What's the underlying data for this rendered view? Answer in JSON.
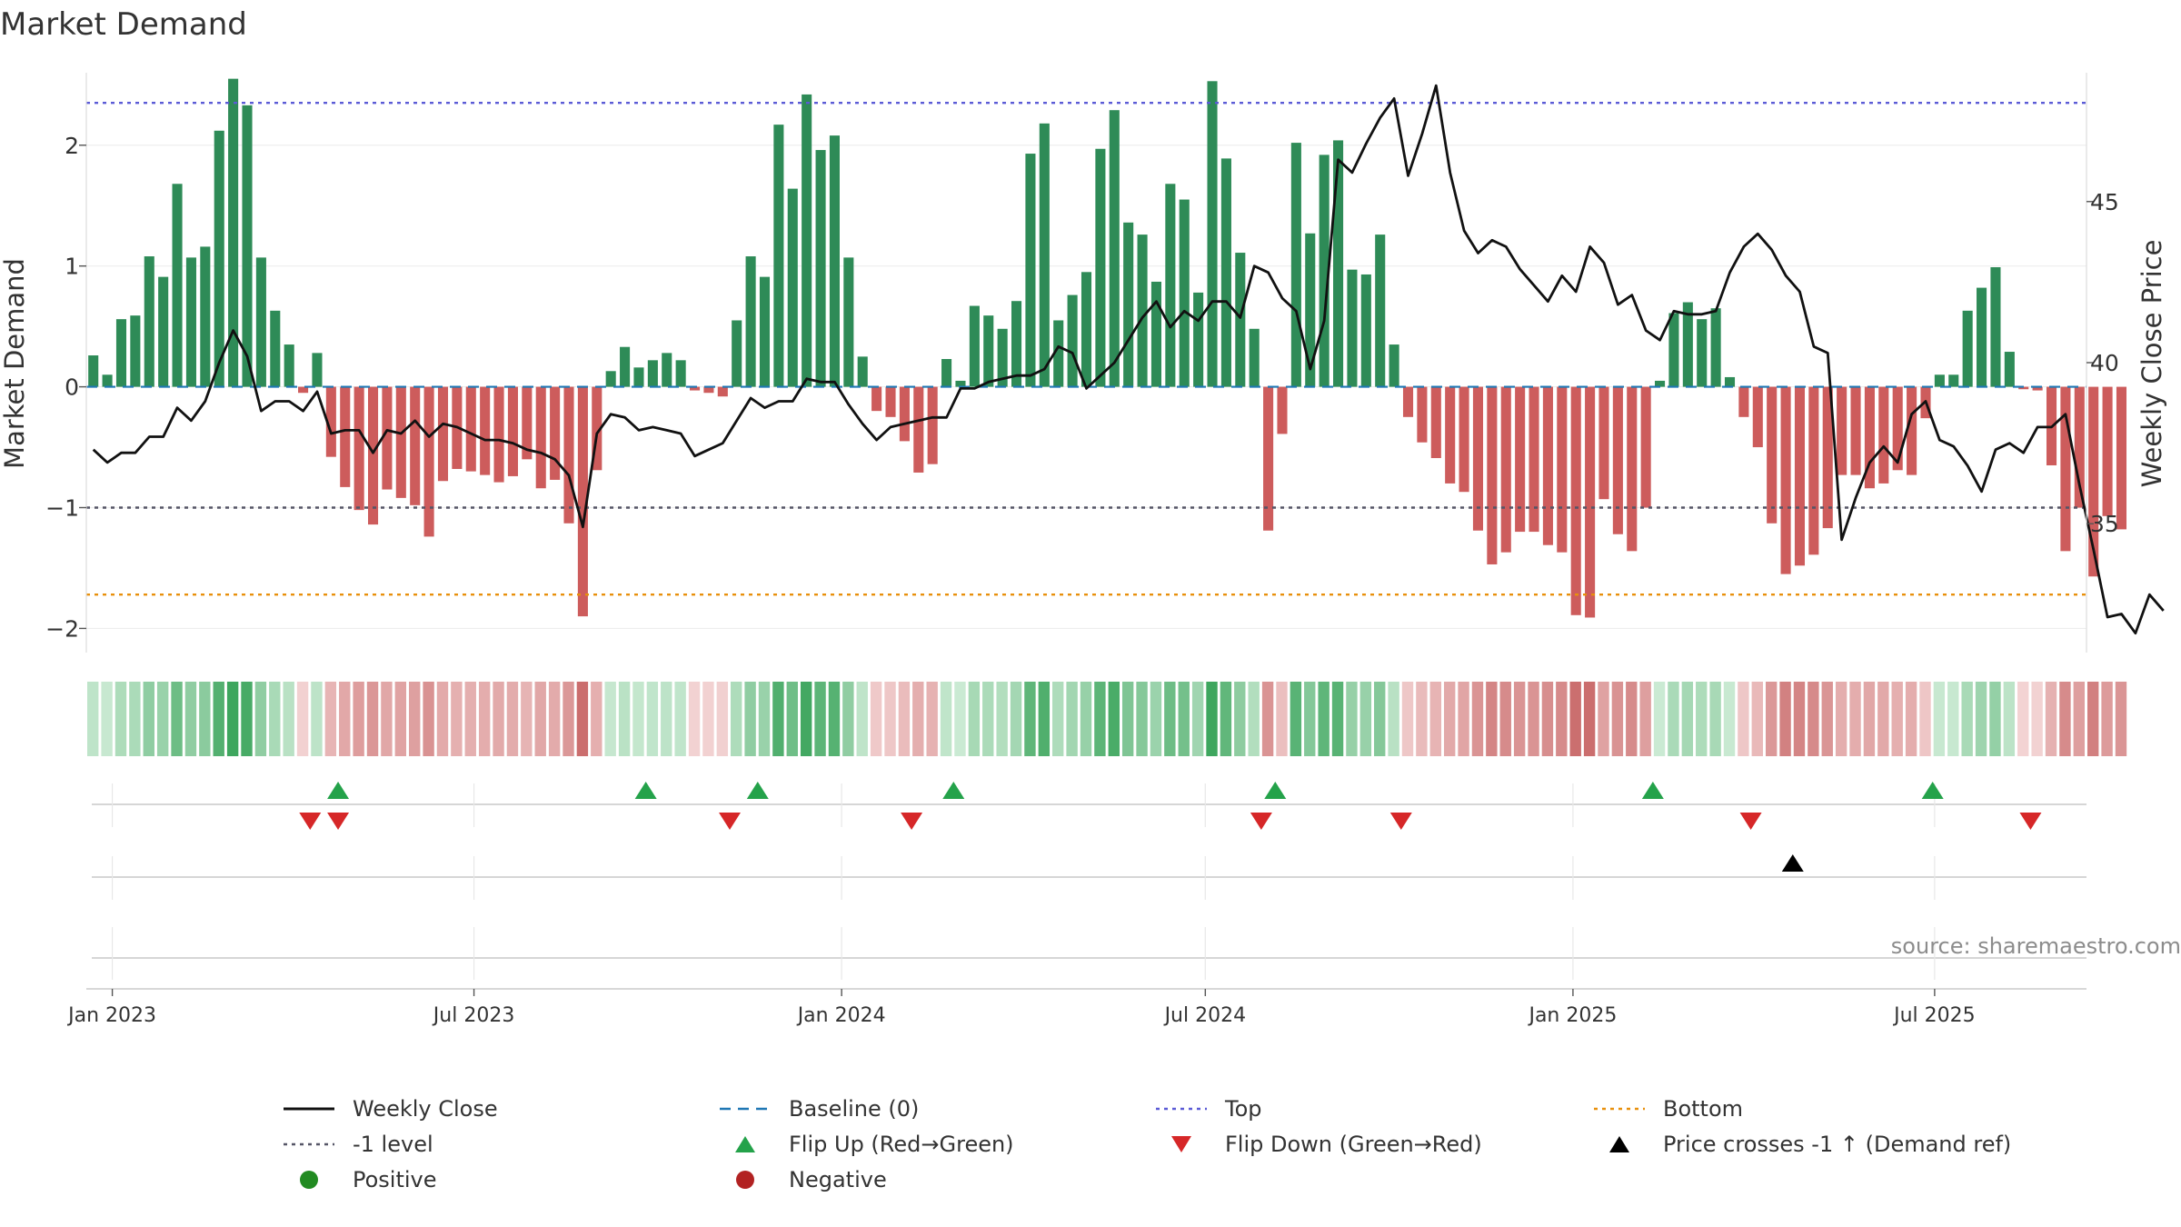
{
  "chart_data": {
    "type": "bar",
    "title": "Market Demand",
    "ylabel_left": "Market Demand",
    "ylabel_right": "Weekly Close Price",
    "source": "source: sharemaestro.com",
    "ylim_left": [
      -2.2,
      2.6
    ],
    "yticks_left": [
      2,
      1,
      0,
      -1,
      -2
    ],
    "ytick_labels_left": [
      "2",
      "1",
      "0",
      "−1",
      "−2"
    ],
    "ylim_right": [
      31,
      49
    ],
    "yticks_right": [
      45,
      40,
      35
    ],
    "ytick_labels_right": [
      "45",
      "40",
      "35"
    ],
    "x_start": "2022-12-19",
    "x_end": "2025-09-15",
    "xtick_dates": [
      "2023-01-01",
      "2023-07-01",
      "2024-01-01",
      "2024-07-01",
      "2025-01-01",
      "2025-07-01"
    ],
    "xtick_labels": [
      "Jan 2023",
      "Jul 2023",
      "Jan 2024",
      "Jul 2024",
      "Jan 2025",
      "Jul 2025"
    ],
    "first_week": "2022-12-19",
    "top_level": 2.35,
    "bottom_level": -1.72,
    "minus_one_level": -1,
    "baseline": 0,
    "demand": [
      0.26,
      0.1,
      0.56,
      0.59,
      1.08,
      0.91,
      1.68,
      1.07,
      1.16,
      2.12,
      2.55,
      2.33,
      1.07,
      0.63,
      0.35,
      -0.05,
      0.28,
      -0.58,
      -0.83,
      -1.02,
      -1.14,
      -0.85,
      -0.92,
      -0.98,
      -1.24,
      -0.78,
      -0.68,
      -0.7,
      -0.73,
      -0.79,
      -0.74,
      -0.6,
      -0.84,
      -0.77,
      -1.13,
      -1.9,
      -0.69,
      0.13,
      0.33,
      0.16,
      0.22,
      0.28,
      0.22,
      -0.03,
      -0.05,
      -0.08,
      0.55,
      1.08,
      0.91,
      2.17,
      1.64,
      2.42,
      1.96,
      2.08,
      1.07,
      0.25,
      -0.2,
      -0.25,
      -0.45,
      -0.71,
      -0.64,
      0.23,
      0.05,
      0.67,
      0.59,
      0.48,
      0.71,
      1.93,
      2.18,
      0.55,
      0.76,
      0.95,
      1.97,
      2.29,
      1.36,
      1.26,
      0.87,
      1.68,
      1.55,
      0.78,
      2.53,
      1.89,
      1.11,
      0.48,
      -1.19,
      -0.39,
      2.02,
      1.27,
      1.92,
      2.04,
      0.97,
      0.93,
      1.26,
      0.35,
      -0.25,
      -0.46,
      -0.59,
      -0.8,
      -0.87,
      -1.19,
      -1.47,
      -1.37,
      -1.2,
      -1.2,
      -1.31,
      -1.37,
      -1.89,
      -1.91,
      -0.93,
      -1.22,
      -1.36,
      -1.0,
      0.05,
      0.61,
      0.7,
      0.56,
      0.65,
      0.08,
      -0.25,
      -0.5,
      -1.13,
      -1.55,
      -1.48,
      -1.39,
      -1.17,
      -0.73,
      -0.73,
      -0.84,
      -0.8,
      -0.69,
      -0.73,
      -0.26,
      0.1,
      0.1,
      0.63,
      0.82,
      0.99,
      0.29,
      -0.02,
      -0.03,
      -0.65,
      -1.36,
      -1.0,
      -1.57,
      -1.07,
      -1.18
    ],
    "close": [
      37.3,
      36.9,
      37.2,
      37.2,
      37.7,
      37.7,
      38.6,
      38.2,
      38.8,
      40.0,
      41.0,
      40.2,
      38.5,
      38.8,
      38.8,
      38.5,
      39.1,
      37.8,
      37.9,
      37.9,
      37.2,
      37.9,
      37.8,
      38.2,
      37.7,
      38.1,
      38.0,
      37.8,
      37.6,
      37.6,
      37.5,
      37.3,
      37.2,
      37.0,
      36.5,
      34.9,
      37.8,
      38.4,
      38.3,
      37.9,
      38.0,
      37.9,
      37.8,
      37.1,
      37.3,
      37.5,
      38.2,
      38.9,
      38.6,
      38.8,
      38.8,
      39.5,
      39.4,
      39.4,
      38.7,
      38.1,
      37.6,
      38.0,
      38.1,
      38.2,
      38.3,
      38.3,
      39.2,
      39.2,
      39.4,
      39.5,
      39.6,
      39.6,
      39.8,
      40.5,
      40.3,
      39.2,
      39.6,
      40.0,
      40.7,
      41.4,
      41.9,
      41.1,
      41.6,
      41.3,
      41.9,
      41.9,
      41.4,
      43.0,
      42.8,
      42.0,
      41.6,
      39.8,
      41.3,
      46.3,
      45.9,
      46.8,
      47.6,
      48.2,
      45.8,
      47.1,
      48.6,
      45.9,
      44.1,
      43.4,
      43.8,
      43.6,
      42.9,
      42.4,
      41.9,
      42.7,
      42.2,
      43.6,
      43.1,
      41.8,
      42.1,
      41.0,
      40.7,
      41.6,
      41.5,
      41.5,
      41.6,
      42.8,
      43.6,
      44.0,
      43.5,
      42.7,
      42.2,
      40.5,
      40.3,
      34.5,
      35.8,
      36.9,
      37.4,
      36.9,
      38.4,
      38.8,
      37.6,
      37.4,
      36.8,
      36.0,
      37.3,
      37.5,
      37.2,
      38.0,
      38.0,
      38.4,
      36.2,
      34.2,
      32.1,
      32.2,
      31.6,
      32.8,
      32.3
    ],
    "flip_up_dates": [
      "2023-04-24",
      "2023-09-25",
      "2023-11-20",
      "2024-02-26",
      "2024-08-05",
      "2025-02-10",
      "2025-06-30"
    ],
    "flip_down_dates": [
      "2023-04-10",
      "2023-04-24",
      "2023-11-06",
      "2024-02-05",
      "2024-07-29",
      "2024-10-07",
      "2025-03-31",
      "2025-08-18"
    ],
    "price_cross_dates": [
      "2025-04-21"
    ],
    "legend": [
      {
        "label": "Weekly Close",
        "kind": "line",
        "color": "#111111"
      },
      {
        "label": "Baseline (0)",
        "kind": "dash",
        "color": "#1f77b4"
      },
      {
        "label": "Top",
        "kind": "dot",
        "color": "#5b5bd6"
      },
      {
        "label": "Bottom",
        "kind": "dot",
        "color": "#e8900c"
      },
      {
        "label": "-1 level",
        "kind": "dot",
        "color": "#555566"
      },
      {
        "label": "Flip Up (Red→Green)",
        "kind": "tri-up",
        "color": "#24a24a"
      },
      {
        "label": "Flip Down (Green→Red)",
        "kind": "tri-down",
        "color": "#d62728"
      },
      {
        "label": "Price crosses -1 ↑ (Demand ref)",
        "kind": "tri-up",
        "color": "#000000"
      },
      {
        "label": "Positive",
        "kind": "circle",
        "color": "#228b22"
      },
      {
        "label": "Negative",
        "kind": "circle",
        "color": "#b22222"
      }
    ],
    "colors": {
      "positive_bar": "#2e8b57",
      "negative_bar": "#cd5c5c",
      "flip_up": "#24a24a",
      "flip_down": "#d62728",
      "cross": "#000000",
      "close_line": "#111111",
      "baseline": "#1f77b4",
      "top": "#5b5bd6",
      "bottom": "#e8900c",
      "minus_one": "#555566"
    }
  }
}
